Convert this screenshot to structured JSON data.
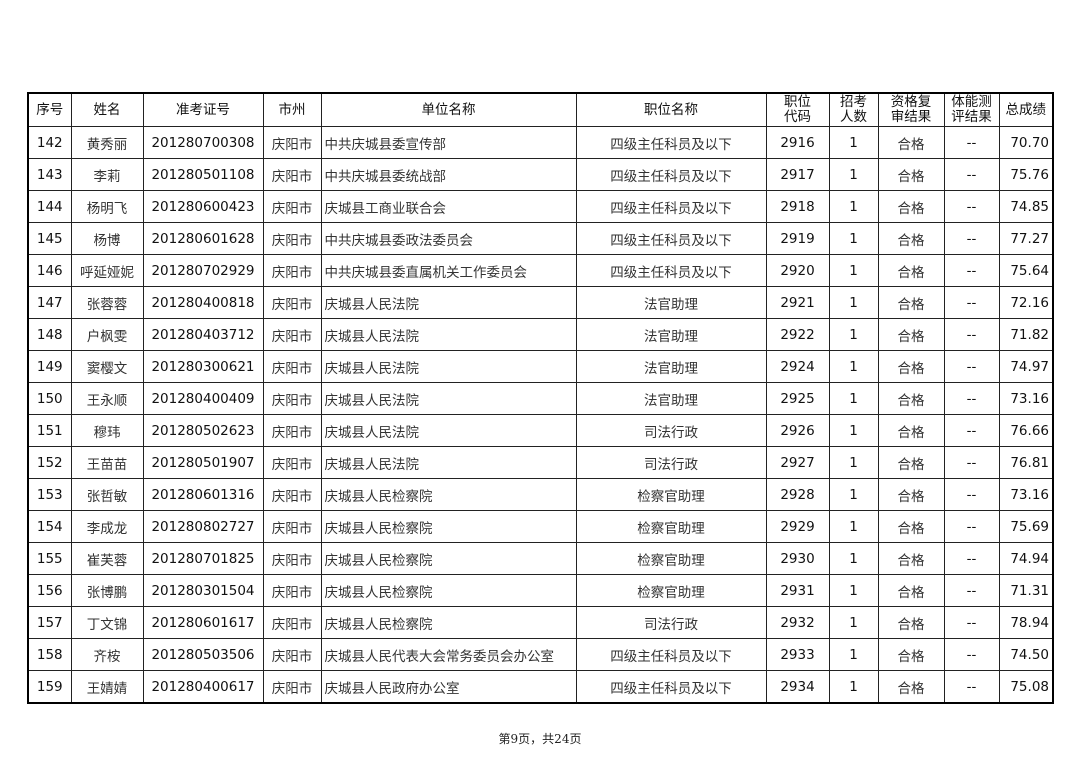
{
  "table": {
    "headers": [
      "序号",
      "姓名",
      "准考证号",
      "市州",
      "单位名称",
      "职位名称",
      "职位\n代码",
      "招考\n人数",
      "资格复\n审结果",
      "体能测\n评结果",
      "总成绩"
    ],
    "rows": [
      [
        "142",
        "黄秀丽",
        "201280700308",
        "庆阳市",
        "中共庆城县委宣传部",
        "四级主任科员及以下",
        "2916",
        "1",
        "合格",
        "--",
        "70.70"
      ],
      [
        "143",
        "李莉",
        "201280501108",
        "庆阳市",
        "中共庆城县委统战部",
        "四级主任科员及以下",
        "2917",
        "1",
        "合格",
        "--",
        "75.76"
      ],
      [
        "144",
        "杨明飞",
        "201280600423",
        "庆阳市",
        "庆城县工商业联合会",
        "四级主任科员及以下",
        "2918",
        "1",
        "合格",
        "--",
        "74.85"
      ],
      [
        "145",
        "杨博",
        "201280601628",
        "庆阳市",
        "中共庆城县委政法委员会",
        "四级主任科员及以下",
        "2919",
        "1",
        "合格",
        "--",
        "77.27"
      ],
      [
        "146",
        "呼延娅妮",
        "201280702929",
        "庆阳市",
        "中共庆城县委直属机关工作委员会",
        "四级主任科员及以下",
        "2920",
        "1",
        "合格",
        "--",
        "75.64"
      ],
      [
        "147",
        "张蓉蓉",
        "201280400818",
        "庆阳市",
        "庆城县人民法院",
        "法官助理",
        "2921",
        "1",
        "合格",
        "--",
        "72.16"
      ],
      [
        "148",
        "户枫雯",
        "201280403712",
        "庆阳市",
        "庆城县人民法院",
        "法官助理",
        "2922",
        "1",
        "合格",
        "--",
        "71.82"
      ],
      [
        "149",
        "窦樱文",
        "201280300621",
        "庆阳市",
        "庆城县人民法院",
        "法官助理",
        "2924",
        "1",
        "合格",
        "--",
        "74.97"
      ],
      [
        "150",
        "王永顺",
        "201280400409",
        "庆阳市",
        "庆城县人民法院",
        "法官助理",
        "2925",
        "1",
        "合格",
        "--",
        "73.16"
      ],
      [
        "151",
        "穆玮",
        "201280502623",
        "庆阳市",
        "庆城县人民法院",
        "司法行政",
        "2926",
        "1",
        "合格",
        "--",
        "76.66"
      ],
      [
        "152",
        "王苗苗",
        "201280501907",
        "庆阳市",
        "庆城县人民法院",
        "司法行政",
        "2927",
        "1",
        "合格",
        "--",
        "76.81"
      ],
      [
        "153",
        "张哲敏",
        "201280601316",
        "庆阳市",
        "庆城县人民检察院",
        "检察官助理",
        "2928",
        "1",
        "合格",
        "--",
        "73.16"
      ],
      [
        "154",
        "李成龙",
        "201280802727",
        "庆阳市",
        "庆城县人民检察院",
        "检察官助理",
        "2929",
        "1",
        "合格",
        "--",
        "75.69"
      ],
      [
        "155",
        "崔芙蓉",
        "201280701825",
        "庆阳市",
        "庆城县人民检察院",
        "检察官助理",
        "2930",
        "1",
        "合格",
        "--",
        "74.94"
      ],
      [
        "156",
        "张博鹏",
        "201280301504",
        "庆阳市",
        "庆城县人民检察院",
        "检察官助理",
        "2931",
        "1",
        "合格",
        "--",
        "71.31"
      ],
      [
        "157",
        "丁文锦",
        "201280601617",
        "庆阳市",
        "庆城县人民检察院",
        "司法行政",
        "2932",
        "1",
        "合格",
        "--",
        "78.94"
      ],
      [
        "158",
        "齐桉",
        "201280503506",
        "庆阳市",
        "庆城县人民代表大会常务委员会办公室",
        "四级主任科员及以下",
        "2933",
        "1",
        "合格",
        "--",
        "74.50"
      ],
      [
        "159",
        "王婧婧",
        "201280400617",
        "庆阳市",
        "庆城县人民政府办公室",
        "四级主任科员及以下",
        "2934",
        "1",
        "合格",
        "--",
        "75.08"
      ]
    ]
  },
  "footer": "第9页，共24页"
}
